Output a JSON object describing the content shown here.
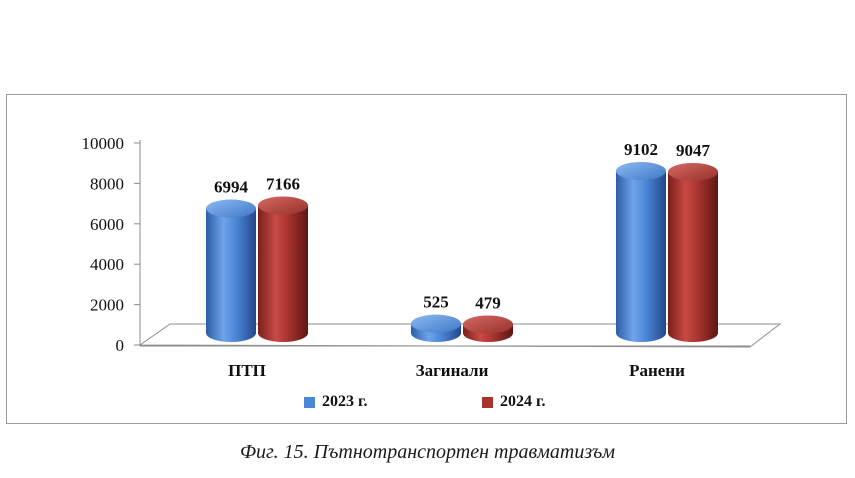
{
  "chart_data": {
    "type": "bar",
    "categories": [
      "ПТП",
      "Загинали",
      "Ранени"
    ],
    "series": [
      {
        "name": "2023 г.",
        "values": [
          6994,
          525,
          9102
        ],
        "color": "#4a86d6"
      },
      {
        "name": "2024 г.",
        "values": [
          7166,
          479,
          9047
        ],
        "color": "#a8332e"
      }
    ],
    "y_ticks": [
      "0",
      "2000",
      "4000",
      "6000",
      "8000",
      "10000"
    ],
    "ylim": [
      0,
      10000
    ],
    "legend_placement": "bottom",
    "style": "3d-cylinder"
  },
  "caption": "Фиг. 15. Пътнотранспортен травматизъм"
}
